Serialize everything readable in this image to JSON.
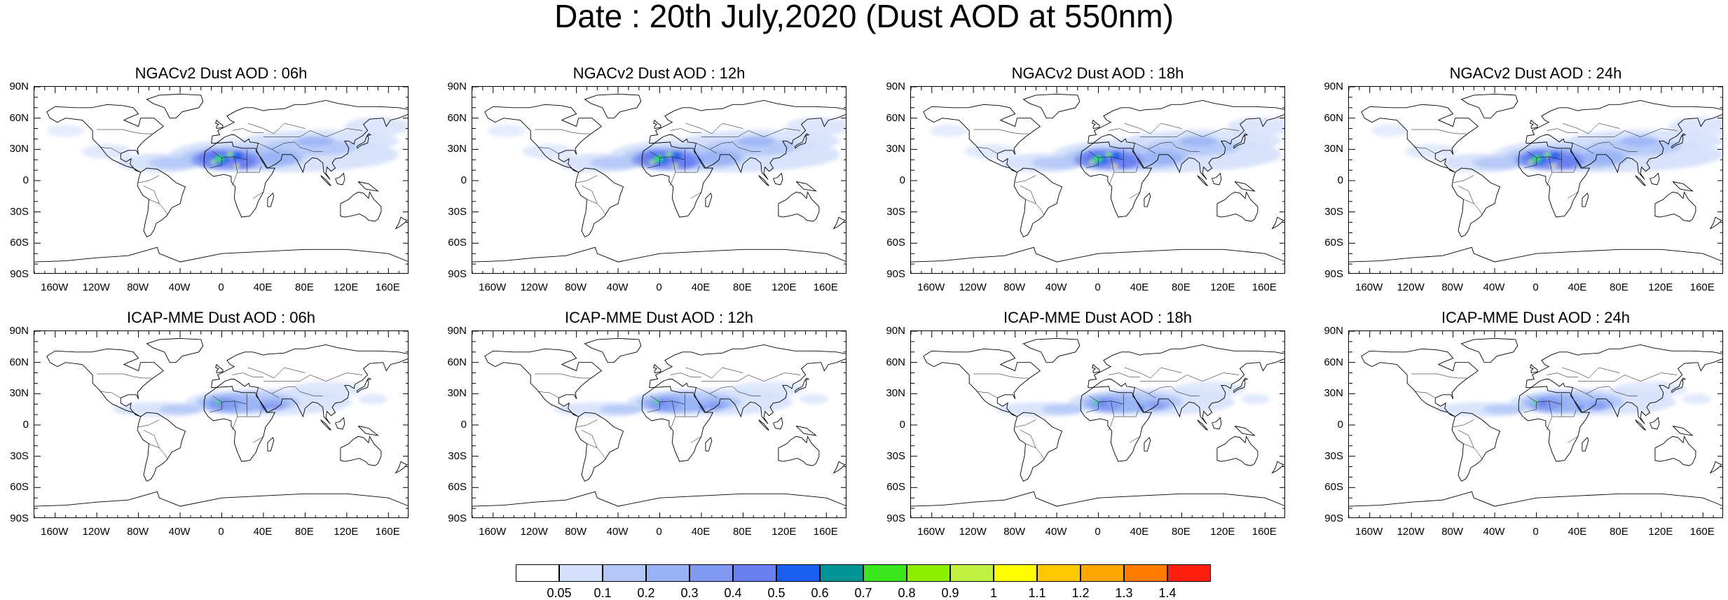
{
  "title": "Date : 20th July,2020 (Dust AOD at 550nm)",
  "panels": [
    {
      "title": "NGACv2 Dust AOD : 06h",
      "row": 0,
      "col": 0
    },
    {
      "title": "NGACv2 Dust AOD : 12h",
      "row": 0,
      "col": 1
    },
    {
      "title": "NGACv2 Dust AOD : 18h",
      "row": 0,
      "col": 2
    },
    {
      "title": "NGACv2 Dust AOD : 24h",
      "row": 0,
      "col": 3
    },
    {
      "title": "ICAP-MME Dust AOD : 06h",
      "row": 1,
      "col": 0
    },
    {
      "title": "ICAP-MME Dust AOD : 12h",
      "row": 1,
      "col": 1
    },
    {
      "title": "ICAP-MME Dust AOD : 18h",
      "row": 1,
      "col": 2
    },
    {
      "title": "ICAP-MME Dust AOD : 24h",
      "row": 1,
      "col": 3
    }
  ],
  "lat_labels": [
    "90N",
    "60N",
    "30N",
    "0",
    "30S",
    "60S",
    "90S"
  ],
  "lon_labels": [
    "160W",
    "120W",
    "80W",
    "40W",
    "0",
    "40E",
    "80E",
    "120E",
    "160E"
  ],
  "colorbar": {
    "colors": [
      "#ffffff",
      "#d4e0fb",
      "#b4c8f7",
      "#98b2f5",
      "#8299f2",
      "#6a7ff0",
      "#1a5ff0",
      "#009494",
      "#3ce61e",
      "#8ef000",
      "#c0f040",
      "#ffff00",
      "#ffc800",
      "#ffa600",
      "#ff7a00",
      "#ff1e10"
    ],
    "labels": [
      "0.05",
      "0.1",
      "0.2",
      "0.3",
      "0.4",
      "0.5",
      "0.6",
      "0.7",
      "0.8",
      "0.9",
      "1",
      "1.1",
      "1.2",
      "1.3",
      "1.4"
    ]
  }
}
